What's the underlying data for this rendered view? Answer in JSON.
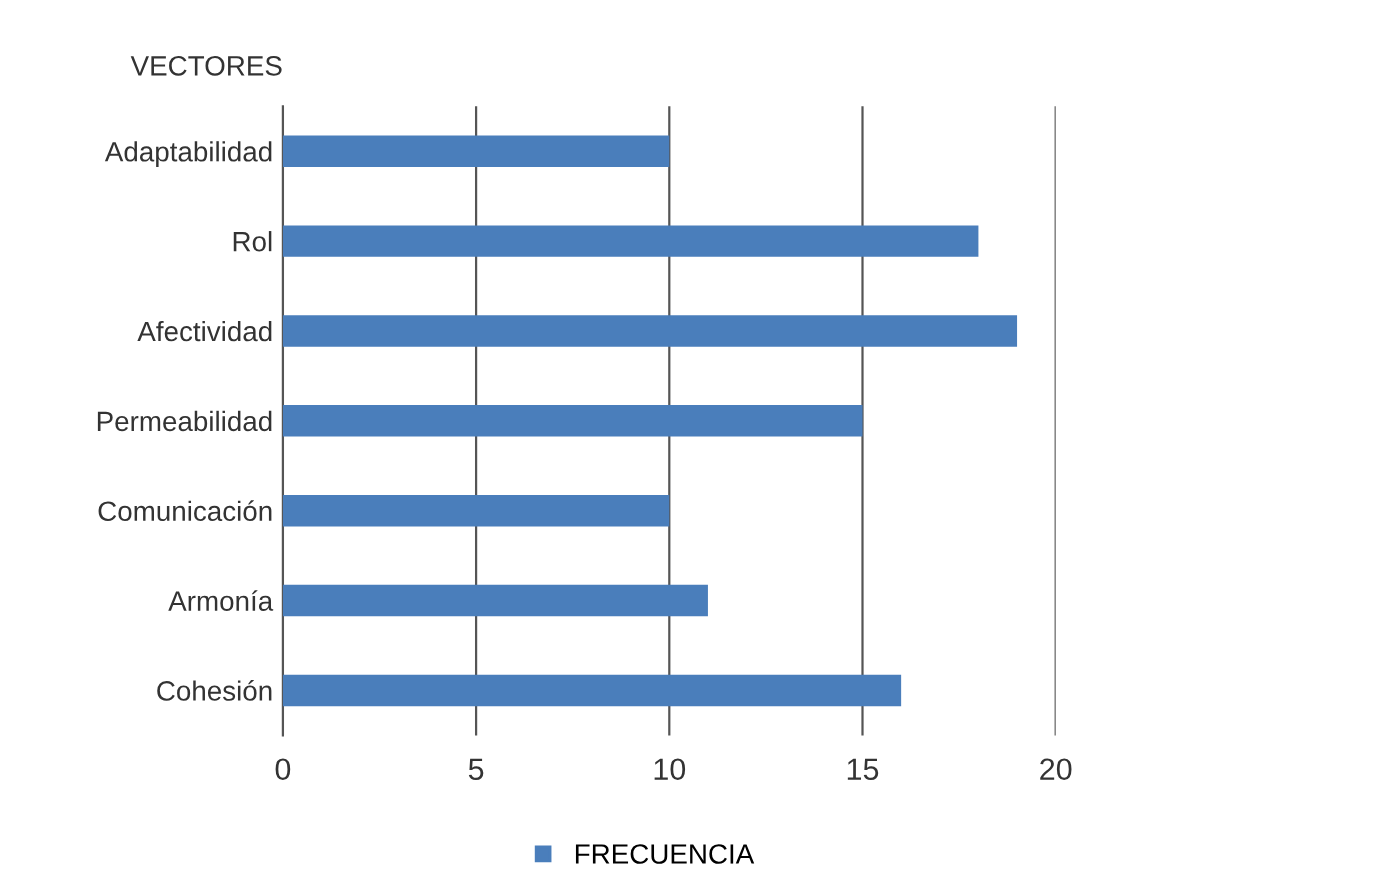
{
  "chart_data": {
    "type": "bar",
    "orientation": "horizontal",
    "ylabel": "VECTORES",
    "categories": [
      "Adaptabilidad",
      "Rol",
      "Afectividad",
      "Permeabilidad",
      "Comunicación",
      "Armonía",
      "Cohesión"
    ],
    "series": [
      {
        "name": "FRECUENCIA",
        "color": "#4a7ebb",
        "values": [
          10,
          18,
          19,
          15,
          10,
          11,
          16
        ]
      }
    ],
    "xlim": [
      0,
      20
    ],
    "xticks": [
      0,
      5,
      10,
      15,
      20
    ],
    "grid": "x",
    "legend": "bottom"
  }
}
